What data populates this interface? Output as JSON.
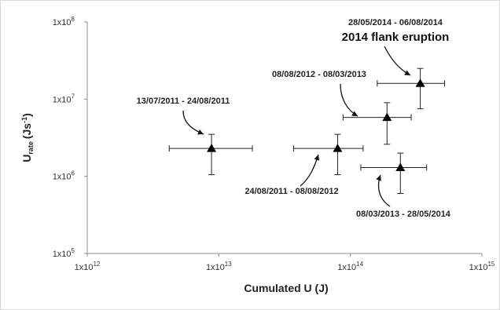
{
  "chart_data": {
    "type": "scatter",
    "x_scale": "log",
    "y_scale": "log",
    "xlim": [
      1000000000000.0,
      1000000000000000.0
    ],
    "ylim": [
      100000.0,
      100000000.0
    ],
    "grid": false,
    "legend": "none",
    "xlabel": "Cumulated U (J)",
    "ylabel": {
      "main": "U",
      "sub": "rate",
      "unit": "(Js",
      "exp": "-1",
      "close": ")"
    },
    "x_ticks": [
      {
        "value": 1000000000000.0,
        "base": "1x10",
        "exp": "12"
      },
      {
        "value": 10000000000000.0,
        "base": "1x10",
        "exp": "13"
      },
      {
        "value": 100000000000000.0,
        "base": "1x10",
        "exp": "14"
      },
      {
        "value": 1000000000000000.0,
        "base": "1x10",
        "exp": "15"
      }
    ],
    "y_ticks": [
      {
        "value": 100000.0,
        "base": "1x10",
        "exp": "5"
      },
      {
        "value": 1000000.0,
        "base": "1x10",
        "exp": "6"
      },
      {
        "value": 10000000.0,
        "base": "1x10",
        "exp": "7"
      },
      {
        "value": 100000000.0,
        "base": "1x10",
        "exp": "8"
      }
    ],
    "marker": "triangle",
    "marker_color": "#000000",
    "points": [
      {
        "x": 8800000000000.0,
        "y": 2300000.0,
        "x_err": [
          4200000000000.0,
          18000000000000.0
        ],
        "y_err": [
          1050000.0,
          3500000.0
        ]
      },
      {
        "x": 80000000000000.0,
        "y": 2300000.0,
        "x_err": [
          37000000000000.0,
          125000000000000.0
        ],
        "y_err": [
          1050000.0,
          3500000.0
        ]
      },
      {
        "x": 190000000000000.0,
        "y": 5800000.0,
        "x_err": [
          88000000000000.0,
          290000000000000.0
        ],
        "y_err": [
          2600000.0,
          9000000.0
        ]
      },
      {
        "x": 240000000000000.0,
        "y": 1300000.0,
        "x_err": [
          120000000000000.0,
          380000000000000.0
        ],
        "y_err": [
          600000.0,
          2000000.0
        ]
      },
      {
        "x": 340000000000000.0,
        "y": 16000000.0,
        "x_err": [
          160000000000000.0,
          520000000000000.0
        ],
        "y_err": [
          7500000.0,
          25000000.0
        ]
      }
    ],
    "annotations": [
      {
        "text": "13/07/2011 - 24/08/2011",
        "point": 0
      },
      {
        "text": "24/08/2011 - 08/08/2012",
        "point": 1
      },
      {
        "text": "08/08/2012 - 08/03/2013",
        "point": 2
      },
      {
        "text": "08/03/2013 - 28/05/2014",
        "point": 3
      },
      {
        "text": "28/05/2014 - 06/08/2014",
        "point": 4
      },
      {
        "text": "2014 flank eruption",
        "point": 4
      }
    ]
  }
}
